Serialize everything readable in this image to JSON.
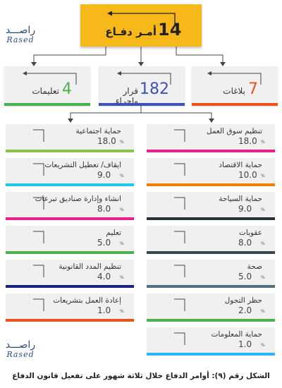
{
  "brand": {
    "arabic": "راصـــد",
    "latin": "Rased"
  },
  "top": {
    "value": "14",
    "label": "أمـر دفـاع"
  },
  "categories": [
    {
      "value": "7",
      "label": "بلاغات",
      "color": "#e8541b"
    },
    {
      "value": "182",
      "label": "قرار وإجراء",
      "color": "#3f51b5"
    },
    {
      "value": "4",
      "label": "تعليمات",
      "color": "#4caf50"
    }
  ],
  "percent_sign": "%",
  "left_items": [
    {
      "value": "18.0",
      "label": "حماية اجتماعية",
      "color": "#8bc34a"
    },
    {
      "value": "9.0",
      "label": "ايقاف/ تعطيل التشريعات",
      "color": "#1ec8e8"
    },
    {
      "value": "8.0",
      "label": "انشاء وإدارة صناديق تبرعات",
      "color": "#e91e8c"
    },
    {
      "value": "5.0",
      "label": "تعليم",
      "color": "#4caf50"
    },
    {
      "value": "4.0",
      "label": "تنظيم المدد القانونية",
      "color": "#1a237e"
    },
    {
      "value": "1.0",
      "label": "إعادة العمل بتشريعات",
      "color": "#e8541b"
    }
  ],
  "right_items": [
    {
      "value": "18.0",
      "label": "تنظيم سوق العمل",
      "color": "#e91e8c"
    },
    {
      "value": "10.0",
      "label": "حماية الاقتصاد",
      "color": "#f57c00"
    },
    {
      "value": "9.0",
      "label": "حماية السياحة",
      "color": "#263238"
    },
    {
      "value": "8.0",
      "label": "عقوبات",
      "color": "#37474f"
    },
    {
      "value": "5.0",
      "label": "صحة",
      "color": "#546e7a"
    },
    {
      "value": "2.0",
      "label": "حظر التجول",
      "color": "#4caf50"
    },
    {
      "value": "1.0",
      "label": "حماية المعلومات",
      "color": "#29b6f6"
    }
  ],
  "caption": "الشكل رقم (٩): أوامر الدفاع خلال ثلاثة شهور على تفعيل قانون الدفاع"
}
